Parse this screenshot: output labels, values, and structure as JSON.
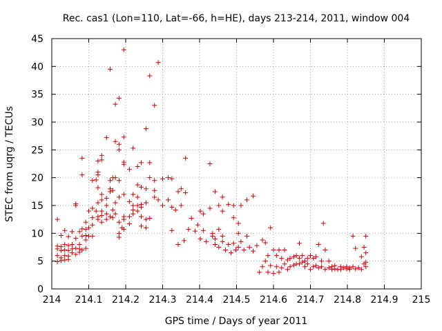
{
  "chart_data": {
    "type": "scatter",
    "title": "Rec. cas1 (Lon=110, Lat=-66, h=HE), days 213-214, 2011, window 004",
    "xlabel": "GPS time / Days of year 2011",
    "ylabel": "STEC from uqrg / TECUs",
    "xlim": [
      214,
      215
    ],
    "ylim": [
      0,
      45
    ],
    "xticks": [
      "214",
      "214.1",
      "214.2",
      "214.3",
      "214.4",
      "214.5",
      "214.6",
      "214.7",
      "214.8",
      "214.9",
      "215"
    ],
    "yticks": [
      "0",
      "5",
      "10",
      "15",
      "20",
      "25",
      "30",
      "35",
      "40",
      "45"
    ],
    "marker": "plus",
    "color": "#cc0000",
    "points": [
      [
        214.015,
        12.5
      ],
      [
        214.015,
        7.7
      ],
      [
        214.015,
        7.2
      ],
      [
        214.015,
        6.0
      ],
      [
        214.015,
        4.9
      ],
      [
        214.025,
        9.6
      ],
      [
        214.025,
        7.6
      ],
      [
        214.025,
        6.9
      ],
      [
        214.025,
        5.6
      ],
      [
        214.025,
        5.1
      ],
      [
        214.035,
        10.5
      ],
      [
        214.035,
        8.0
      ],
      [
        214.035,
        7.0
      ],
      [
        214.035,
        6.0
      ],
      [
        214.035,
        5.2
      ],
      [
        214.045,
        9.4
      ],
      [
        214.045,
        7.8
      ],
      [
        214.045,
        6.9
      ],
      [
        214.045,
        5.9
      ],
      [
        214.045,
        5.3
      ],
      [
        214.055,
        10.3
      ],
      [
        214.055,
        8.0
      ],
      [
        214.055,
        7.2
      ],
      [
        214.055,
        6.5
      ],
      [
        214.065,
        15.3
      ],
      [
        214.065,
        15.0
      ],
      [
        214.065,
        9.1
      ],
      [
        214.065,
        7.3
      ],
      [
        214.065,
        6.2
      ],
      [
        214.075,
        10.3
      ],
      [
        214.075,
        8.0
      ],
      [
        214.075,
        7.2
      ],
      [
        214.075,
        6.6
      ],
      [
        214.082,
        23.5
      ],
      [
        214.082,
        20.5
      ],
      [
        214.082,
        10.8
      ],
      [
        214.082,
        9.5
      ],
      [
        214.082,
        7.0
      ],
      [
        214.092,
        12.0
      ],
      [
        214.092,
        10.7
      ],
      [
        214.092,
        9.6
      ],
      [
        214.092,
        8.8
      ],
      [
        214.092,
        7.3
      ],
      [
        214.1,
        14.0
      ],
      [
        214.1,
        11.0
      ],
      [
        214.1,
        9.5
      ],
      [
        214.11,
        19.5
      ],
      [
        214.11,
        14.5
      ],
      [
        214.11,
        12.8
      ],
      [
        214.11,
        11.5
      ],
      [
        214.11,
        9.5
      ],
      [
        214.12,
        19.6
      ],
      [
        214.12,
        14.0
      ],
      [
        214.125,
        23.0
      ],
      [
        214.125,
        21.0
      ],
      [
        214.125,
        20.5
      ],
      [
        214.125,
        18.2
      ],
      [
        214.125,
        15.5
      ],
      [
        214.125,
        13.0
      ],
      [
        214.125,
        12.5
      ],
      [
        214.135,
        24.0
      ],
      [
        214.135,
        23.2
      ],
      [
        214.135,
        17.0
      ],
      [
        214.135,
        16.0
      ],
      [
        214.135,
        14.0
      ],
      [
        214.135,
        13.2
      ],
      [
        214.135,
        12.0
      ],
      [
        214.148,
        27.2
      ],
      [
        214.148,
        16.3
      ],
      [
        214.148,
        15.0
      ],
      [
        214.148,
        13.5
      ],
      [
        214.148,
        12.5
      ],
      [
        214.158,
        39.5
      ],
      [
        214.158,
        19.5
      ],
      [
        214.158,
        18.0
      ],
      [
        214.158,
        17.5
      ],
      [
        214.158,
        13.0
      ],
      [
        214.165,
        20.0
      ],
      [
        214.165,
        17.7
      ],
      [
        214.165,
        14.2
      ],
      [
        214.165,
        12.8
      ],
      [
        214.172,
        33.2
      ],
      [
        214.172,
        26.5
      ],
      [
        214.172,
        20.0
      ],
      [
        214.172,
        15.5
      ],
      [
        214.172,
        13.5
      ],
      [
        214.182,
        34.3
      ],
      [
        214.182,
        26.0
      ],
      [
        214.182,
        25.0
      ],
      [
        214.182,
        19.5
      ],
      [
        214.182,
        16.5
      ],
      [
        214.182,
        12.0
      ],
      [
        214.182,
        10.0
      ],
      [
        214.182,
        9.3
      ],
      [
        214.19,
        11.0
      ],
      [
        214.195,
        43.0
      ],
      [
        214.195,
        27.3
      ],
      [
        214.195,
        22.8
      ],
      [
        214.195,
        22.4
      ],
      [
        214.195,
        17.0
      ],
      [
        214.195,
        13.0
      ],
      [
        214.195,
        12.5
      ],
      [
        214.195,
        10.7
      ],
      [
        214.21,
        21.5
      ],
      [
        214.21,
        15.7
      ],
      [
        214.21,
        13.0
      ],
      [
        214.21,
        11.7
      ],
      [
        214.22,
        25.3
      ],
      [
        214.22,
        17.0
      ],
      [
        214.22,
        15.0
      ],
      [
        214.22,
        14.2
      ],
      [
        214.22,
        13.5
      ],
      [
        214.232,
        22.0
      ],
      [
        214.232,
        18.7
      ],
      [
        214.232,
        16.5
      ],
      [
        214.232,
        15.0
      ],
      [
        214.232,
        14.0
      ],
      [
        214.242,
        22.7
      ],
      [
        214.242,
        18.3
      ],
      [
        214.242,
        15.2
      ],
      [
        214.242,
        14.7
      ],
      [
        214.242,
        13.0
      ],
      [
        214.242,
        11.3
      ],
      [
        214.255,
        28.8
      ],
      [
        214.255,
        18.0
      ],
      [
        214.255,
        15.5
      ],
      [
        214.255,
        12.5
      ],
      [
        214.255,
        11.0
      ],
      [
        214.265,
        38.3
      ],
      [
        214.265,
        22.7
      ],
      [
        214.265,
        20.0
      ],
      [
        214.265,
        12.7
      ],
      [
        214.278,
        33.0
      ],
      [
        214.278,
        19.5
      ],
      [
        214.278,
        17.7
      ],
      [
        214.278,
        16.5
      ],
      [
        214.288,
        40.7
      ],
      [
        214.288,
        16.0
      ],
      [
        214.3,
        19.8
      ],
      [
        214.3,
        15.0
      ],
      [
        214.315,
        20.0
      ],
      [
        214.315,
        16.0
      ],
      [
        214.325,
        19.8
      ],
      [
        214.325,
        14.7
      ],
      [
        214.325,
        10.5
      ],
      [
        214.335,
        14.2
      ],
      [
        214.342,
        17.5
      ],
      [
        214.342,
        8.0
      ],
      [
        214.35,
        18.0
      ],
      [
        214.35,
        15.0
      ],
      [
        214.358,
        8.7
      ],
      [
        214.362,
        23.5
      ],
      [
        214.362,
        17.3
      ],
      [
        214.37,
        10.7
      ],
      [
        214.378,
        12.7
      ],
      [
        214.388,
        10.4
      ],
      [
        214.395,
        11.5
      ],
      [
        214.402,
        14.0
      ],
      [
        214.402,
        9.0
      ],
      [
        214.41,
        13.5
      ],
      [
        214.41,
        10.5
      ],
      [
        214.418,
        8.5
      ],
      [
        214.428,
        22.5
      ],
      [
        214.428,
        14.5
      ],
      [
        214.435,
        10.0
      ],
      [
        214.435,
        9.5
      ],
      [
        214.442,
        17.5
      ],
      [
        214.442,
        9.0
      ],
      [
        214.442,
        8.0
      ],
      [
        214.452,
        15.0
      ],
      [
        214.452,
        10.7
      ],
      [
        214.452,
        7.5
      ],
      [
        214.462,
        16.5
      ],
      [
        214.462,
        14.0
      ],
      [
        214.462,
        9.5
      ],
      [
        214.462,
        8.5
      ],
      [
        214.47,
        7.0
      ],
      [
        214.478,
        15.2
      ],
      [
        214.478,
        8.0
      ],
      [
        214.485,
        6.5
      ],
      [
        214.492,
        12.8
      ],
      [
        214.492,
        15.0
      ],
      [
        214.492,
        8.2
      ],
      [
        214.498,
        7.0
      ],
      [
        214.505,
        11.8
      ],
      [
        214.505,
        10.0
      ],
      [
        214.505,
        7.5
      ],
      [
        214.512,
        15.0
      ],
      [
        214.512,
        8.5
      ],
      [
        214.52,
        7.0
      ],
      [
        214.528,
        16.0
      ],
      [
        214.528,
        9.5
      ],
      [
        214.535,
        7.5
      ],
      [
        214.545,
        16.7
      ],
      [
        214.545,
        6.8
      ],
      [
        214.555,
        7.8
      ],
      [
        214.562,
        3.0
      ],
      [
        214.57,
        8.8
      ],
      [
        214.57,
        4.0
      ],
      [
        214.578,
        8.3
      ],
      [
        214.578,
        5.0
      ],
      [
        214.585,
        6.0
      ],
      [
        214.585,
        3.0
      ],
      [
        214.592,
        11.0
      ],
      [
        214.592,
        4.2
      ],
      [
        214.6,
        7.0
      ],
      [
        214.6,
        2.8
      ],
      [
        214.608,
        6.0
      ],
      [
        214.608,
        4.0
      ],
      [
        214.615,
        7.0
      ],
      [
        214.615,
        3.0
      ],
      [
        214.622,
        5.5
      ],
      [
        214.622,
        3.8
      ],
      [
        214.63,
        7.0
      ],
      [
        214.63,
        4.5
      ],
      [
        214.638,
        5.2
      ],
      [
        214.638,
        3.5
      ],
      [
        214.645,
        5.5
      ],
      [
        214.645,
        4.0
      ],
      [
        214.655,
        5.8
      ],
      [
        214.655,
        4.3
      ],
      [
        214.662,
        6.0
      ],
      [
        214.662,
        4.5
      ],
      [
        214.67,
        8.2
      ],
      [
        214.67,
        5.5
      ],
      [
        214.67,
        4.5
      ],
      [
        214.678,
        6.0
      ],
      [
        214.678,
        4.8
      ],
      [
        214.685,
        5.0
      ],
      [
        214.685,
        4.0
      ],
      [
        214.692,
        5.5
      ],
      [
        214.692,
        4.5
      ],
      [
        214.7,
        6.0
      ],
      [
        214.7,
        3.5
      ],
      [
        214.708,
        5.5
      ],
      [
        214.708,
        4.0
      ],
      [
        214.715,
        5.8
      ],
      [
        214.715,
        4.2
      ],
      [
        214.722,
        8.0
      ],
      [
        214.722,
        3.8
      ],
      [
        214.73,
        5.0
      ],
      [
        214.73,
        4.0
      ],
      [
        214.735,
        11.8
      ],
      [
        214.74,
        7.0
      ],
      [
        214.74,
        3.5
      ],
      [
        214.75,
        5.0
      ],
      [
        214.75,
        3.8
      ],
      [
        214.758,
        4.0
      ],
      [
        214.758,
        3.5
      ],
      [
        214.766,
        4.2
      ],
      [
        214.766,
        3.6
      ],
      [
        214.774,
        3.5
      ],
      [
        214.782,
        4.0
      ],
      [
        214.782,
        3.5
      ],
      [
        214.79,
        3.8
      ],
      [
        214.798,
        4.0
      ],
      [
        214.798,
        3.6
      ],
      [
        214.806,
        3.8
      ],
      [
        214.806,
        3.5
      ],
      [
        214.815,
        9.5
      ],
      [
        214.815,
        4.0
      ],
      [
        214.822,
        7.3
      ],
      [
        214.822,
        3.6
      ],
      [
        214.83,
        3.8
      ],
      [
        214.838,
        5.8
      ],
      [
        214.838,
        3.5
      ],
      [
        214.845,
        7.5
      ],
      [
        214.845,
        4.5
      ],
      [
        214.85,
        9.5
      ],
      [
        214.85,
        6.5
      ],
      [
        214.85,
        4.8
      ],
      [
        214.85,
        4.0
      ]
    ]
  }
}
